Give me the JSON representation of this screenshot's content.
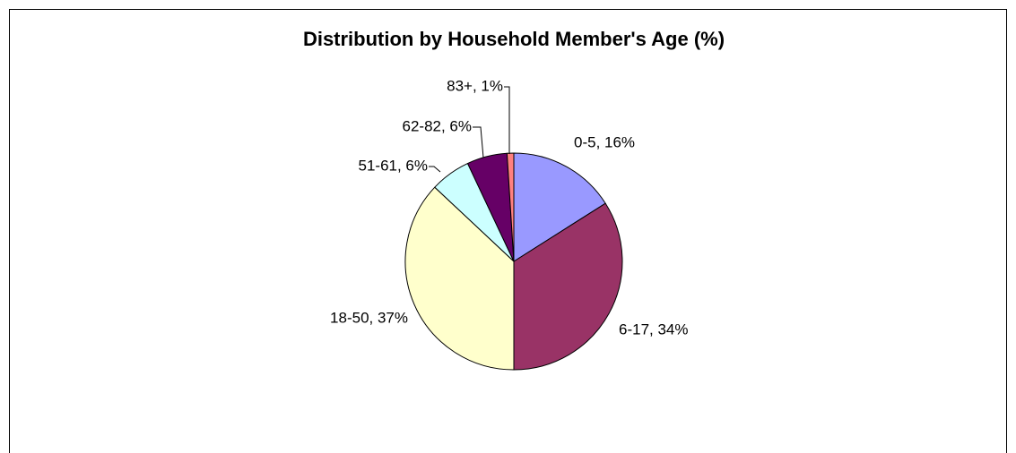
{
  "chart_data": {
    "type": "pie",
    "title": "Distribution by Household Member's Age (%)",
    "categories": [
      "0-5",
      "6-17",
      "18-50",
      "51-61",
      "62-82",
      "83+"
    ],
    "values": [
      16,
      34,
      37,
      6,
      6,
      1
    ],
    "value_labels": [
      "0-5, 16%",
      "6-17, 34%",
      "18-50, 37%",
      "51-61, 6%",
      "62-82, 6%",
      "83+, 1%"
    ],
    "colors": [
      "#9999ff",
      "#993366",
      "#ffffcc",
      "#ccffff",
      "#660066",
      "#ff8080"
    ]
  }
}
